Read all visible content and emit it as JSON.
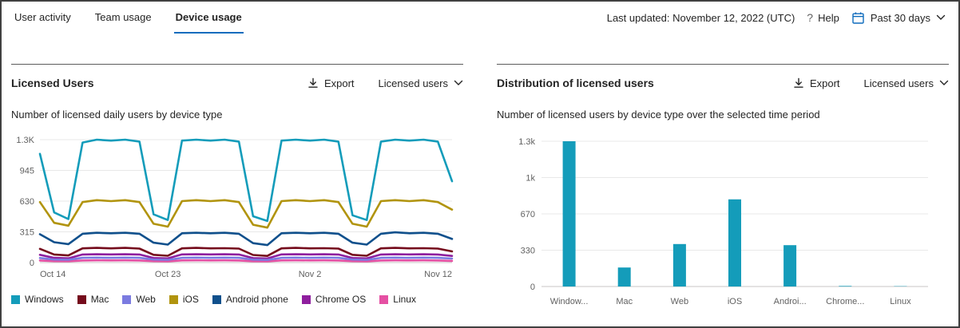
{
  "tabs": [
    {
      "label": "User activity",
      "active": false
    },
    {
      "label": "Team usage",
      "active": false
    },
    {
      "label": "Device usage",
      "active": true
    }
  ],
  "topbar": {
    "last_updated": "Last updated: November 12, 2022 (UTC)",
    "help_icon": "?",
    "help_label": "Help",
    "date_range": "Past 30 days"
  },
  "panels": {
    "left": {
      "title": "Licensed Users",
      "export_label": "Export",
      "metric_selector": "Licensed users",
      "subtitle": "Number of licensed daily users by device type"
    },
    "right": {
      "title": "Distribution of licensed users",
      "export_label": "Export",
      "metric_selector": "Licensed users",
      "subtitle": "Number of licensed users by device type over the selected time period"
    }
  },
  "colors": {
    "accent": "#0f6cbd",
    "calendar_icon": "#0f6cbd",
    "bar": "#149cba",
    "axis_text": "#616161"
  },
  "chart_data": [
    {
      "type": "line",
      "title": "Number of licensed daily users by device type",
      "x": [
        "Oct 14",
        "Oct 15",
        "Oct 16",
        "Oct 17",
        "Oct 18",
        "Oct 19",
        "Oct 20",
        "Oct 21",
        "Oct 22",
        "Oct 23",
        "Oct 24",
        "Oct 25",
        "Oct 26",
        "Oct 27",
        "Oct 28",
        "Oct 29",
        "Oct 30",
        "Oct 31",
        "Nov 1",
        "Nov 2",
        "Nov 3",
        "Nov 4",
        "Nov 5",
        "Nov 6",
        "Nov 7",
        "Nov 8",
        "Nov 9",
        "Nov 10",
        "Nov 11",
        "Nov 12"
      ],
      "x_tick_labels": [
        {
          "index": 0,
          "label": "Oct 14",
          "anchor": "start"
        },
        {
          "index": 9,
          "label": "Oct 23",
          "anchor": "middle"
        },
        {
          "index": 19,
          "label": "Nov 2",
          "anchor": "middle"
        },
        {
          "index": 29,
          "label": "Nov 12",
          "anchor": "end"
        }
      ],
      "ylim": [
        0,
        1300
      ],
      "y_tick_labels": [
        "0",
        "315",
        "630",
        "945",
        "1.3K"
      ],
      "grid": true,
      "legend_position": "bottom",
      "series": [
        {
          "name": "Windows",
          "color": "#149cba",
          "values": [
            1150,
            530,
            460,
            1270,
            1300,
            1290,
            1300,
            1280,
            510,
            450,
            1290,
            1300,
            1290,
            1300,
            1280,
            490,
            440,
            1290,
            1300,
            1290,
            1300,
            1280,
            500,
            450,
            1280,
            1300,
            1290,
            1300,
            1280,
            860
          ]
        },
        {
          "name": "Mac",
          "color": "#750b1c",
          "values": [
            145,
            85,
            75,
            150,
            155,
            150,
            155,
            148,
            82,
            72,
            150,
            155,
            150,
            152,
            148,
            80,
            70,
            150,
            155,
            150,
            152,
            148,
            82,
            72,
            150,
            155,
            150,
            152,
            148,
            118
          ]
        },
        {
          "name": "Web",
          "color": "#7b7be0",
          "values": [
            48,
            32,
            30,
            50,
            52,
            50,
            52,
            50,
            32,
            29,
            50,
            52,
            50,
            52,
            50,
            31,
            28,
            50,
            52,
            50,
            52,
            50,
            32,
            29,
            50,
            52,
            50,
            52,
            50,
            42
          ]
        },
        {
          "name": "iOS",
          "color": "#b1940e",
          "values": [
            640,
            420,
            390,
            640,
            660,
            650,
            660,
            640,
            410,
            380,
            650,
            660,
            650,
            660,
            640,
            400,
            370,
            650,
            660,
            650,
            660,
            640,
            410,
            380,
            650,
            660,
            650,
            660,
            640,
            560
          ]
        },
        {
          "name": "Android phone",
          "color": "#10508c",
          "values": [
            300,
            215,
            195,
            305,
            315,
            310,
            315,
            305,
            210,
            190,
            310,
            315,
            310,
            315,
            305,
            205,
            185,
            310,
            315,
            310,
            315,
            305,
            210,
            190,
            305,
            320,
            310,
            315,
            305,
            250
          ]
        },
        {
          "name": "Chrome OS",
          "color": "#8f1f9e",
          "values": [
            82,
            50,
            45,
            85,
            88,
            86,
            88,
            85,
            48,
            44,
            86,
            88,
            86,
            88,
            85,
            47,
            43,
            86,
            88,
            86,
            88,
            85,
            48,
            44,
            85,
            88,
            86,
            88,
            85,
            70
          ]
        },
        {
          "name": "Linux",
          "color": "#e550a3",
          "values": [
            22,
            15,
            14,
            22,
            24,
            23,
            24,
            22,
            15,
            13,
            23,
            24,
            23,
            24,
            22,
            14,
            13,
            23,
            24,
            23,
            24,
            22,
            15,
            13,
            22,
            24,
            23,
            24,
            22,
            18
          ]
        }
      ]
    },
    {
      "type": "bar",
      "title": "Number of licensed users by device type over the selected time period",
      "categories": [
        "Windows",
        "Mac",
        "Web",
        "iOS",
        "Android phone",
        "Chrome OS",
        "Linux"
      ],
      "x_tick_labels": [
        "Window...",
        "Mac",
        "Web",
        "iOS",
        "Androi...",
        "Chrome...",
        "Linux"
      ],
      "values": [
        1300,
        170,
        380,
        780,
        370,
        5,
        3
      ],
      "bar_color": "#149cba",
      "ylim": [
        0,
        1300
      ],
      "y_tick_labels": [
        "0",
        "330",
        "670",
        "1k",
        "1.3k"
      ],
      "grid": true
    }
  ]
}
